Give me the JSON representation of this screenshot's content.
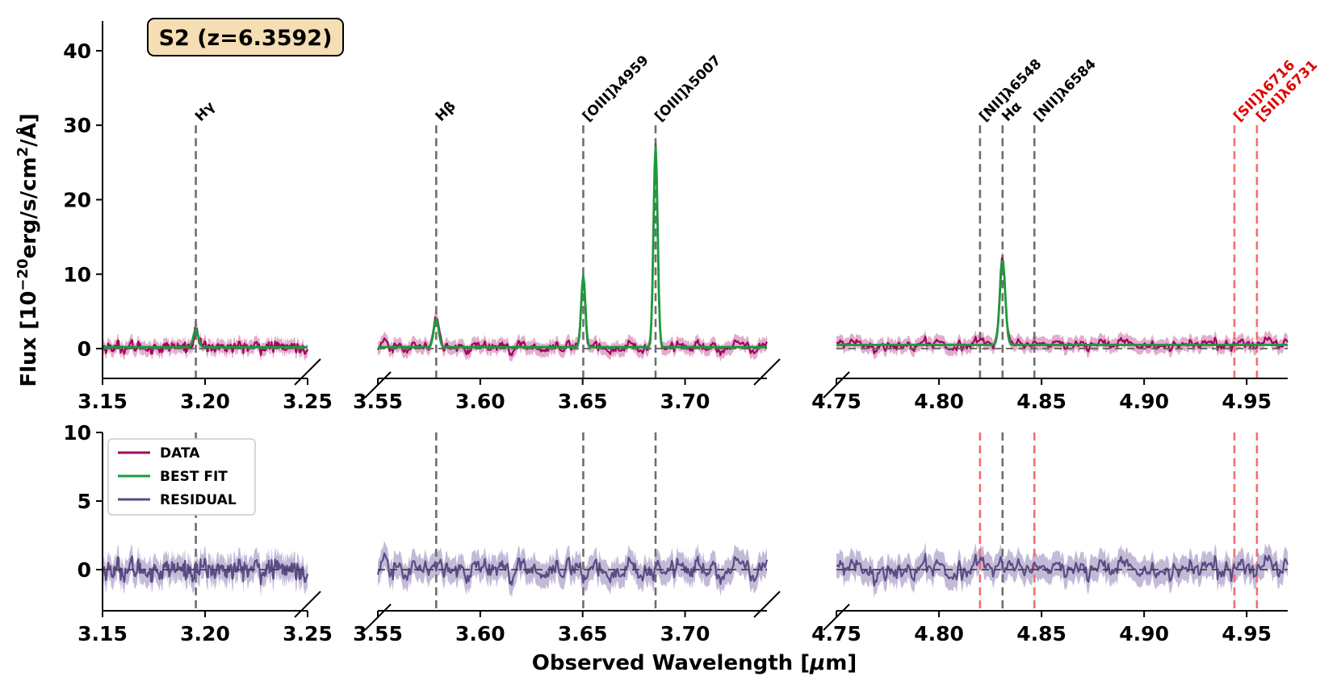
{
  "chart_data": {
    "type": "line",
    "title": "S2 (z=6.3592)",
    "xlabel": "Observed Wavelength [μm]",
    "ylabel": "Flux [10⁻²⁰erg/s/cm²/Å]",
    "ylabel_parts": {
      "prefix": "Flux [10",
      "exponent": "−20",
      "middle": "erg/s/cm",
      "exponent2": "2",
      "suffix": "/Å]"
    },
    "xlabel_parts": {
      "prefix": "Observed Wavelength [",
      "mu": "μ",
      "suffix": "m]"
    },
    "colors": {
      "data": "#a5005f",
      "data_band": "#c86aa2",
      "fit": "#1a9a3a",
      "residual": "#5b4b85",
      "residual_band": "#a99dc8",
      "line_black": "#6e6e6e",
      "line_red": "#f26e6e",
      "label_red": "#e00000",
      "title_box": "#f5deb3"
    },
    "segments": [
      {
        "name": "seg1",
        "xlim": [
          3.15,
          3.25
        ],
        "ticks": [
          "3.15",
          "3.20",
          "3.25"
        ],
        "tick_values": [
          3.15,
          3.2,
          3.25
        ]
      },
      {
        "name": "seg2",
        "xlim": [
          3.55,
          3.74
        ],
        "ticks": [
          "3.55",
          "3.60",
          "3.65",
          "3.70"
        ],
        "tick_values": [
          3.55,
          3.6,
          3.65,
          3.7
        ]
      },
      {
        "name": "seg3",
        "xlim": [
          4.75,
          4.97
        ],
        "ticks": [
          "4.75",
          "4.80",
          "4.85",
          "4.90",
          "4.95"
        ],
        "tick_values": [
          4.75,
          4.8,
          4.85,
          4.9,
          4.95
        ]
      }
    ],
    "top_panel": {
      "ylim": [
        -4,
        44
      ],
      "yticks": [
        "0",
        "10",
        "20",
        "30",
        "40"
      ],
      "ytick_values": [
        0,
        10,
        20,
        30,
        40
      ]
    },
    "bottom_panel": {
      "ylim": [
        -3,
        10
      ],
      "yticks": [
        "0",
        "5",
        "10"
      ],
      "ytick_values": [
        0,
        5,
        10
      ]
    },
    "emission_lines": [
      {
        "label": "Hγ",
        "wavelength": 3.1955,
        "color": "black"
      },
      {
        "label": "Hβ",
        "wavelength": 3.5785,
        "color": "black"
      },
      {
        "label": "[OIII]λ4959",
        "wavelength": 3.6503,
        "color": "black"
      },
      {
        "label": "[OIII]λ5007",
        "wavelength": 3.6856,
        "color": "black"
      },
      {
        "label": "[NII]λ6548",
        "wavelength": 4.82,
        "color": "black"
      },
      {
        "label": "Hα",
        "wavelength": 4.831,
        "color": "black"
      },
      {
        "label": "[NII]λ6584",
        "wavelength": 4.8465,
        "color": "black"
      },
      {
        "label": "[SII]λ6716",
        "wavelength": 4.944,
        "color": "red"
      },
      {
        "label": "[SII]λ6731",
        "wavelength": 4.955,
        "color": "red"
      }
    ],
    "peaks": [
      {
        "center": 3.1955,
        "amplitude": 2.4,
        "sigma": 0.0012
      },
      {
        "center": 3.5785,
        "amplitude": 3.8,
        "sigma": 0.0012
      },
      {
        "center": 3.6503,
        "amplitude": 9.6,
        "sigma": 0.001
      },
      {
        "center": 3.6856,
        "amplitude": 27.0,
        "sigma": 0.001
      },
      {
        "center": 4.831,
        "amplitude": 11.5,
        "sigma": 0.0013
      }
    ],
    "continuum": [
      {
        "segment": "seg1",
        "level": 0.2
      },
      {
        "segment": "seg2",
        "level": 0.2
      },
      {
        "segment": "seg3",
        "level": 0.5
      }
    ],
    "legend": [
      {
        "label": "DATA",
        "key": "data"
      },
      {
        "label": "BEST FIT",
        "key": "fit"
      },
      {
        "label": "RESIDUAL",
        "key": "residual"
      }
    ]
  }
}
